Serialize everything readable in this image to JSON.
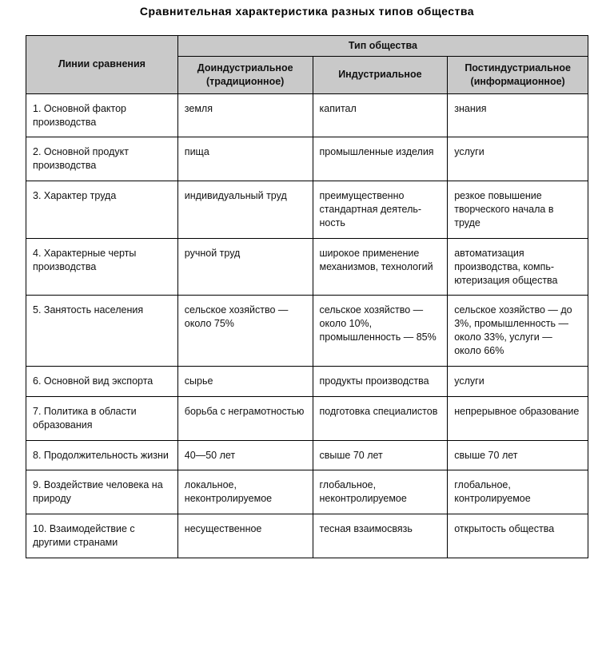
{
  "title": "Сравнительная характеристика разных типов общества",
  "header": {
    "lines": "Линии сравнения",
    "group": "Тип общества",
    "col1": "Доиндустриальное (традиционное)",
    "col2": "Индустриальное",
    "col3": "Постиндустриальное (информационное)"
  },
  "rows": [
    {
      "label": "1. Основной фактор производства",
      "a": "земля",
      "b": "капитал",
      "c": "знания"
    },
    {
      "label": "2. Основной продукт производства",
      "a": "пища",
      "b": "промышленные изделия",
      "c": "услуги"
    },
    {
      "label": "3. Характер труда",
      "a": "индивидуальный труд",
      "b": "преимущественно стандартная деятель­ность",
      "c": "резкое повышение творческого начала в труде"
    },
    {
      "label": "4. Характерные черты производства",
      "a": "ручной труд",
      "b": "широкое применение механизмов, техноло­гий",
      "c": "автоматизация производства, компь­ютеризация общества"
    },
    {
      "label": "5. Занятость населения",
      "a": "сельское хозяй­ство — около 75%",
      "b": "сельское хозяйство — около 10%, промышленность — 85%",
      "c": "сельское хозяйст­во — до 3%, промышленность — около 33%, услу­ги — около 66%"
    },
    {
      "label": "6. Основной вид экспорта",
      "a": "сырье",
      "b": "продукты производства",
      "c": "услуги"
    },
    {
      "label": "7. Политика в области образования",
      "a": "борьба с неграмотно­стью",
      "b": "подготовка специалистов",
      "c": "непрерывное образование"
    },
    {
      "label": "8. Продолжительность жизни",
      "a": "40—50 лет",
      "b": "свыше 70 лет",
      "c": "свыше 70 лет"
    },
    {
      "label": "9. Воздействие человека на природу",
      "a": "локальное, неконтролируемое",
      "b": "глобальное, неконтролируемое",
      "c": "глобальное, контролируемое"
    },
    {
      "label": "10. Взаимодействие с другими странами",
      "a": "несущественное",
      "b": "тесная взаимосвязь",
      "c": "открытость общества"
    }
  ],
  "style": {
    "header_bg": "#c9c9c9",
    "border_color": "#000000",
    "font_size_body": 12.5,
    "font_size_title": 14
  }
}
